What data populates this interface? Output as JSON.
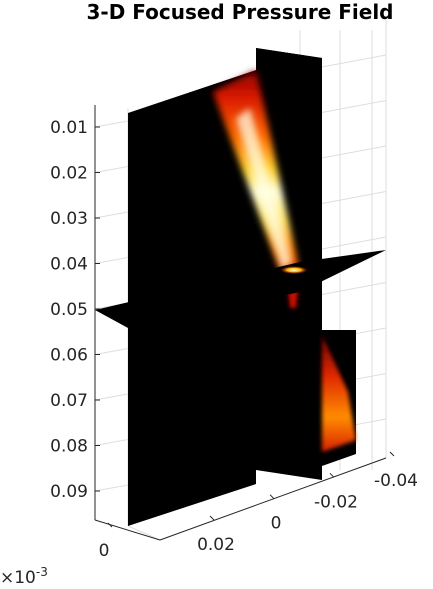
{
  "chart_data": {
    "type": "volume-slice",
    "title": "3-D Focused Pressure Field",
    "z_axis": {
      "ticks": [
        0.01,
        0.02,
        0.03,
        0.04,
        0.05,
        0.06,
        0.07,
        0.08,
        0.09
      ],
      "tick_labels": [
        "0.01",
        "0.02",
        "0.03",
        "0.04",
        "0.05",
        "0.06",
        "0.07",
        "0.08",
        "0.09"
      ],
      "direction": "reversed"
    },
    "x_axis": {
      "ticks": [
        0.02,
        0,
        -0.02,
        -0.04
      ],
      "tick_labels": [
        "0.02",
        "0",
        "-0.02",
        "-0.04"
      ]
    },
    "y_axis": {
      "ticks": [
        0
      ],
      "tick_labels": [
        "0"
      ],
      "exponent_label": "×10",
      "exponent": "-3"
    },
    "slices": [
      "x=0 plane",
      "y=0 plane",
      "z=0.05 plane"
    ],
    "colormap": "hot",
    "focus_depth": 0.04,
    "grid": true
  }
}
